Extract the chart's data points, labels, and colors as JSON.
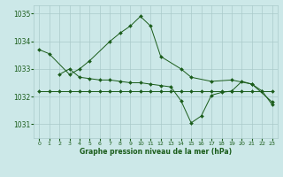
{
  "title": "Graphe pression niveau de la mer (hPa)",
  "bg_color": "#cce8e8",
  "grid_color": "#aacaca",
  "line_color": "#1a5c1a",
  "xlim": [
    -0.5,
    23.5
  ],
  "ylim": [
    1030.5,
    1035.3
  ],
  "yticks": [
    1031,
    1032,
    1033,
    1034,
    1035
  ],
  "xticks": [
    0,
    1,
    2,
    3,
    4,
    5,
    6,
    7,
    8,
    9,
    10,
    11,
    12,
    13,
    14,
    15,
    16,
    17,
    18,
    19,
    20,
    21,
    22,
    23
  ],
  "series": [
    {
      "x": [
        0,
        1,
        3,
        4,
        5,
        7,
        8,
        9,
        10,
        11,
        12,
        14,
        15,
        17,
        19,
        21,
        23
      ],
      "y": [
        1033.7,
        1033.55,
        1032.8,
        1033.0,
        1033.3,
        1034.0,
        1034.3,
        1034.55,
        1034.9,
        1034.55,
        1033.45,
        1033.0,
        1032.7,
        1032.55,
        1032.6,
        1032.45,
        1031.8
      ]
    },
    {
      "x": [
        0,
        1,
        2,
        3,
        4,
        5,
        6,
        7,
        8,
        9,
        10,
        11,
        12,
        13,
        14,
        15,
        16,
        17,
        18,
        19,
        20,
        21,
        22,
        23
      ],
      "y": [
        1032.2,
        1032.2,
        1032.2,
        1032.2,
        1032.2,
        1032.2,
        1032.2,
        1032.2,
        1032.2,
        1032.2,
        1032.2,
        1032.2,
        1032.2,
        1032.2,
        1032.2,
        1032.2,
        1032.2,
        1032.2,
        1032.2,
        1032.2,
        1032.2,
        1032.2,
        1032.2,
        1032.2
      ]
    },
    {
      "x": [
        2,
        3,
        4,
        5,
        6,
        7,
        8,
        9,
        10,
        11,
        12,
        13,
        14,
        15,
        16,
        17,
        18,
        19,
        20,
        21,
        22,
        23
      ],
      "y": [
        1032.8,
        1033.0,
        1032.7,
        1032.65,
        1032.6,
        1032.6,
        1032.55,
        1032.5,
        1032.5,
        1032.45,
        1032.4,
        1032.35,
        1031.85,
        1031.05,
        1031.3,
        1032.05,
        1032.15,
        1032.2,
        1032.55,
        1032.45,
        1032.2,
        1031.7
      ]
    }
  ]
}
